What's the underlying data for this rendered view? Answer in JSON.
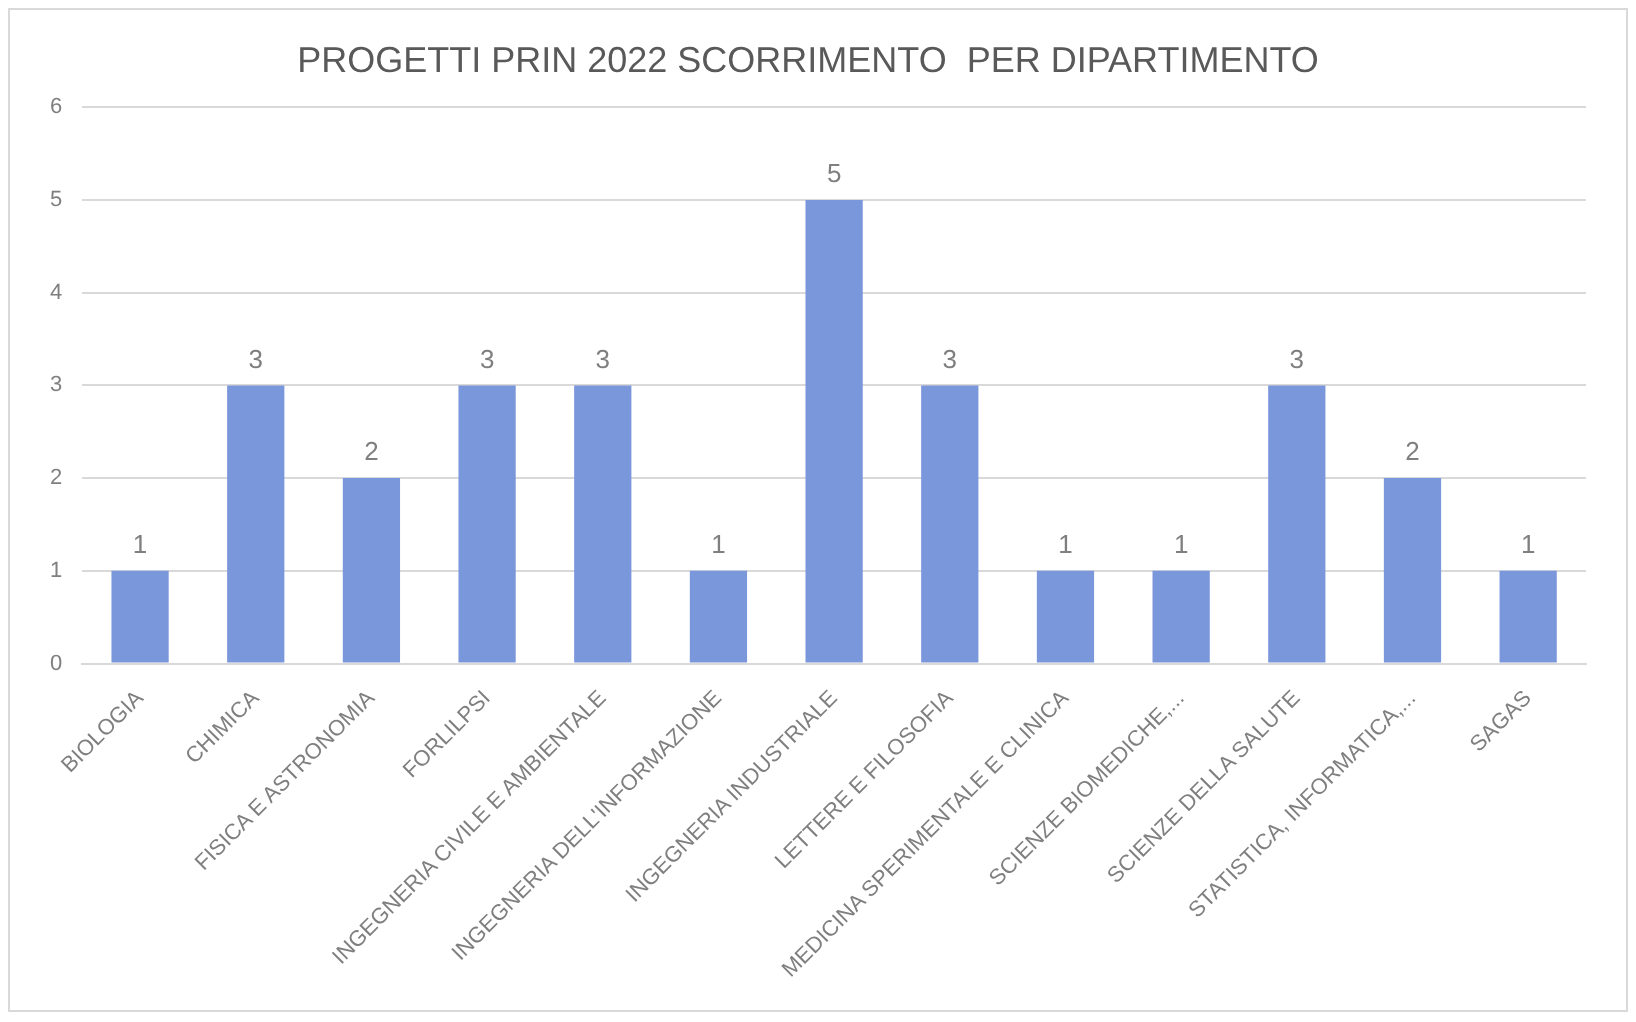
{
  "chart_data": {
    "type": "bar",
    "title": "PROGETTI PRIN 2022 SCORRIMENTO  PER DIPARTIMENTO",
    "categories": [
      "BIOLOGIA",
      "CHIMICA",
      "FISICA E ASTRONOMIA",
      "FORLILPSI",
      "INGEGNERIA CIVILE E AMBIENTALE",
      "INGEGNERIA DELL'INFORMAZIONE",
      "INGEGNERIA INDUSTRIALE",
      "LETTERE E FILOSOFIA",
      "MEDICINA SPERIMENTALE E CLINICA",
      "SCIENZE BIOMEDICHE,...",
      "SCIENZE DELLA SALUTE",
      "STATISTICA, INFORMATICA,...",
      "SAGAS"
    ],
    "values": [
      1,
      3,
      2,
      3,
      3,
      1,
      5,
      3,
      1,
      1,
      3,
      2,
      1
    ],
    "color": "#7b97dc",
    "ylim": [
      0,
      6
    ],
    "yticks": [
      0,
      1,
      2,
      3,
      4,
      5,
      6
    ],
    "grid": "y",
    "data_labels": true
  }
}
